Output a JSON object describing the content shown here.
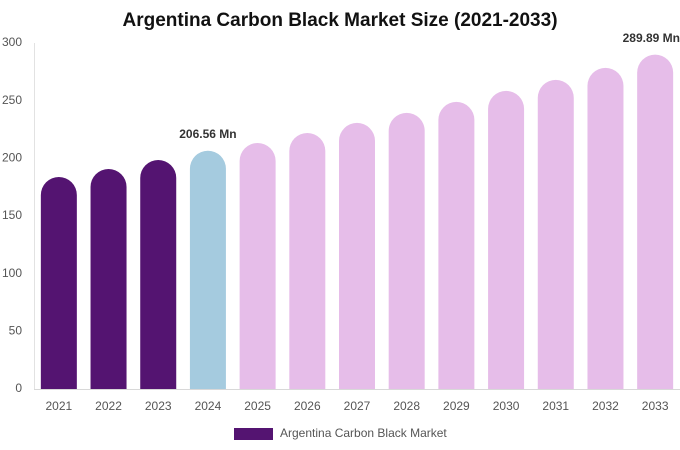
{
  "chart_data": {
    "type": "bar",
    "title": "Argentina Carbon Black Market Size (2021-2033)",
    "categories": [
      "2021",
      "2022",
      "2023",
      "2024",
      "2025",
      "2026",
      "2027",
      "2028",
      "2029",
      "2030",
      "2031",
      "2032",
      "2033"
    ],
    "values": [
      183.8,
      190.8,
      198.6,
      206.56,
      213.3,
      222,
      230.7,
      239.4,
      248.9,
      258.5,
      268,
      278.4,
      289.89
    ],
    "value_labels": [
      null,
      null,
      null,
      "206.56 Mn",
      null,
      null,
      null,
      null,
      null,
      null,
      null,
      null,
      "289.89 Mn"
    ],
    "colors": [
      "#541471",
      "#541471",
      "#541471",
      "#a5cbdf",
      "#e6bde9",
      "#e6bde9",
      "#e6bde9",
      "#e6bde9",
      "#e6bde9",
      "#e6bde9",
      "#e6bde9",
      "#e6bde9",
      "#e6bde9"
    ],
    "series_name": "Argentina Carbon Black Market",
    "legend_color": "#541471",
    "ylim": [
      0,
      300
    ],
    "yticks": [
      0,
      50,
      100,
      150,
      200,
      250,
      300
    ],
    "grid": false
  }
}
